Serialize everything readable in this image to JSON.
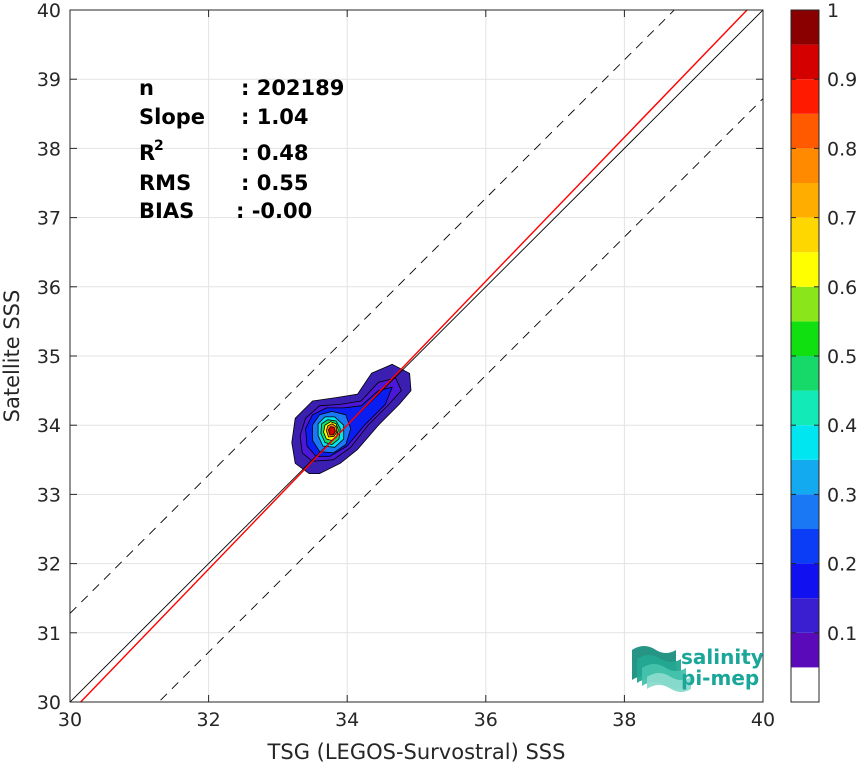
{
  "chart_data": {
    "type": "heatmap",
    "xlabel": "TSG (LEGOS-Survostral) SSS",
    "ylabel": "Satellite SSS",
    "xlim": [
      30,
      40
    ],
    "ylim": [
      30,
      40
    ],
    "xticks": [
      "30",
      "32",
      "34",
      "36",
      "38",
      "40"
    ],
    "yticks": [
      "30",
      "31",
      "32",
      "33",
      "34",
      "35",
      "36",
      "37",
      "38",
      "39",
      "40"
    ],
    "grid": true,
    "reference_lines": {
      "identity": {
        "slope": 1,
        "intercept": 0,
        "color": "#000000",
        "style": "solid"
      },
      "regression": {
        "slope": 1.04,
        "intercept": -1.36,
        "color": "#ff0000",
        "style": "solid"
      },
      "upper_bound": {
        "slope": 1,
        "intercept": 1.28,
        "color": "#000000",
        "style": "dashed"
      },
      "lower_bound": {
        "slope": 1,
        "intercept": -1.28,
        "color": "#000000",
        "style": "dashed"
      }
    },
    "density_contours": [
      {
        "level": 0.05,
        "color": "#3a1fb0",
        "points": [
          [
            33.45,
            33.3
          ],
          [
            33.25,
            33.45
          ],
          [
            33.2,
            33.75
          ],
          [
            33.25,
            34.1
          ],
          [
            33.5,
            34.35
          ],
          [
            33.85,
            34.4
          ],
          [
            34.15,
            34.45
          ],
          [
            34.35,
            34.75
          ],
          [
            34.65,
            34.88
          ],
          [
            34.9,
            34.75
          ],
          [
            34.92,
            34.5
          ],
          [
            34.75,
            34.3
          ],
          [
            34.45,
            34.0
          ],
          [
            34.15,
            33.65
          ],
          [
            33.9,
            33.45
          ],
          [
            33.6,
            33.3
          ]
        ]
      },
      {
        "level": 0.1,
        "color": "#4b18d8",
        "points": [
          [
            33.5,
            33.48
          ],
          [
            33.35,
            33.6
          ],
          [
            33.32,
            33.85
          ],
          [
            33.4,
            34.1
          ],
          [
            33.6,
            34.28
          ],
          [
            33.9,
            34.3
          ],
          [
            34.2,
            34.35
          ],
          [
            34.45,
            34.62
          ],
          [
            34.7,
            34.68
          ],
          [
            34.78,
            34.5
          ],
          [
            34.6,
            34.3
          ],
          [
            34.3,
            34.0
          ],
          [
            34.05,
            33.68
          ],
          [
            33.8,
            33.5
          ]
        ]
      },
      {
        "level": 0.2,
        "color": "#0a1ef2",
        "points": [
          [
            33.55,
            33.55
          ],
          [
            33.42,
            33.7
          ],
          [
            33.4,
            33.95
          ],
          [
            33.5,
            34.15
          ],
          [
            33.7,
            34.25
          ],
          [
            33.95,
            34.25
          ],
          [
            34.2,
            34.28
          ],
          [
            34.45,
            34.5
          ],
          [
            34.65,
            34.55
          ],
          [
            34.55,
            34.3
          ],
          [
            34.25,
            34.0
          ],
          [
            34.0,
            33.7
          ],
          [
            33.75,
            33.55
          ]
        ]
      },
      {
        "level": 0.3,
        "color": "#1a78f5",
        "points": [
          [
            33.6,
            33.62
          ],
          [
            33.5,
            33.78
          ],
          [
            33.5,
            34.0
          ],
          [
            33.6,
            34.15
          ],
          [
            33.78,
            34.2
          ],
          [
            33.98,
            34.15
          ],
          [
            34.05,
            33.95
          ],
          [
            33.98,
            33.72
          ],
          [
            33.8,
            33.6
          ]
        ]
      },
      {
        "level": 0.4,
        "color": "#00e6f0",
        "points": [
          [
            33.65,
            33.7
          ],
          [
            33.58,
            33.85
          ],
          [
            33.58,
            34.02
          ],
          [
            33.68,
            34.12
          ],
          [
            33.82,
            34.12
          ],
          [
            33.95,
            34.0
          ],
          [
            33.95,
            33.8
          ],
          [
            33.82,
            33.68
          ]
        ]
      },
      {
        "level": 0.5,
        "color": "#16d96a",
        "points": [
          [
            33.68,
            33.75
          ],
          [
            33.62,
            33.88
          ],
          [
            33.63,
            34.02
          ],
          [
            33.72,
            34.08
          ],
          [
            33.84,
            34.06
          ],
          [
            33.9,
            33.95
          ],
          [
            33.88,
            33.8
          ],
          [
            33.78,
            33.72
          ]
        ]
      },
      {
        "level": 0.6,
        "color": "#ffff00",
        "points": [
          [
            33.7,
            33.8
          ],
          [
            33.66,
            33.9
          ],
          [
            33.68,
            34.0
          ],
          [
            33.76,
            34.05
          ],
          [
            33.84,
            34.02
          ],
          [
            33.87,
            33.93
          ],
          [
            33.84,
            33.82
          ],
          [
            33.77,
            33.78
          ]
        ]
      },
      {
        "level": 0.75,
        "color": "#ff8a00",
        "points": [
          [
            33.73,
            33.83
          ],
          [
            33.7,
            33.92
          ],
          [
            33.72,
            33.99
          ],
          [
            33.78,
            34.02
          ],
          [
            33.84,
            33.98
          ],
          [
            33.85,
            33.9
          ],
          [
            33.81,
            33.84
          ]
        ]
      },
      {
        "level": 0.9,
        "color": "#d40000",
        "points": [
          [
            33.75,
            33.86
          ],
          [
            33.73,
            33.93
          ],
          [
            33.76,
            33.98
          ],
          [
            33.81,
            33.97
          ],
          [
            33.83,
            33.91
          ],
          [
            33.8,
            33.86
          ]
        ]
      }
    ],
    "stats": [
      {
        "label": "n",
        "value": ": 202189"
      },
      {
        "label": "Slope",
        "value": ": 1.04"
      },
      {
        "label": "R",
        "sup": "2",
        "value": ": 0.48"
      },
      {
        "label": "RMS",
        "value": ": 0.55"
      },
      {
        "label": "BIAS",
        "value": ": -0.00"
      }
    ],
    "colorbar": {
      "range": [
        0,
        1
      ],
      "tick_labels": [
        "0.1",
        "0.2",
        "0.3",
        "0.4",
        "0.5",
        "0.6",
        "0.7",
        "0.8",
        "0.9",
        "1"
      ],
      "tick_values": [
        0.1,
        0.2,
        0.3,
        0.4,
        0.5,
        0.6,
        0.7,
        0.8,
        0.9,
        1.0
      ],
      "bands": [
        {
          "from": 0.0,
          "to": 0.05,
          "color": "#ffffff"
        },
        {
          "from": 0.05,
          "to": 0.1,
          "color": "#5a0ab8"
        },
        {
          "from": 0.1,
          "to": 0.15,
          "color": "#3a1fd0"
        },
        {
          "from": 0.15,
          "to": 0.2,
          "color": "#1010f0"
        },
        {
          "from": 0.2,
          "to": 0.25,
          "color": "#0a3df5"
        },
        {
          "from": 0.25,
          "to": 0.3,
          "color": "#1a78f5"
        },
        {
          "from": 0.3,
          "to": 0.35,
          "color": "#14aaf0"
        },
        {
          "from": 0.35,
          "to": 0.4,
          "color": "#00e6f0"
        },
        {
          "from": 0.4,
          "to": 0.45,
          "color": "#12eab8"
        },
        {
          "from": 0.45,
          "to": 0.5,
          "color": "#16d96a"
        },
        {
          "from": 0.5,
          "to": 0.55,
          "color": "#10e010"
        },
        {
          "from": 0.55,
          "to": 0.6,
          "color": "#8ae61a"
        },
        {
          "from": 0.6,
          "to": 0.65,
          "color": "#ffff00"
        },
        {
          "from": 0.65,
          "to": 0.7,
          "color": "#ffd700"
        },
        {
          "from": 0.7,
          "to": 0.75,
          "color": "#ffae00"
        },
        {
          "from": 0.75,
          "to": 0.8,
          "color": "#ff8a00"
        },
        {
          "from": 0.8,
          "to": 0.85,
          "color": "#ff5a00"
        },
        {
          "from": 0.85,
          "to": 0.9,
          "color": "#ff1a00"
        },
        {
          "from": 0.9,
          "to": 0.95,
          "color": "#d40000"
        },
        {
          "from": 0.95,
          "to": 1.0,
          "color": "#8a0000"
        }
      ]
    }
  },
  "logo": {
    "line1": "salinity",
    "line2": "pi-mep",
    "color": "#1aa79a"
  }
}
